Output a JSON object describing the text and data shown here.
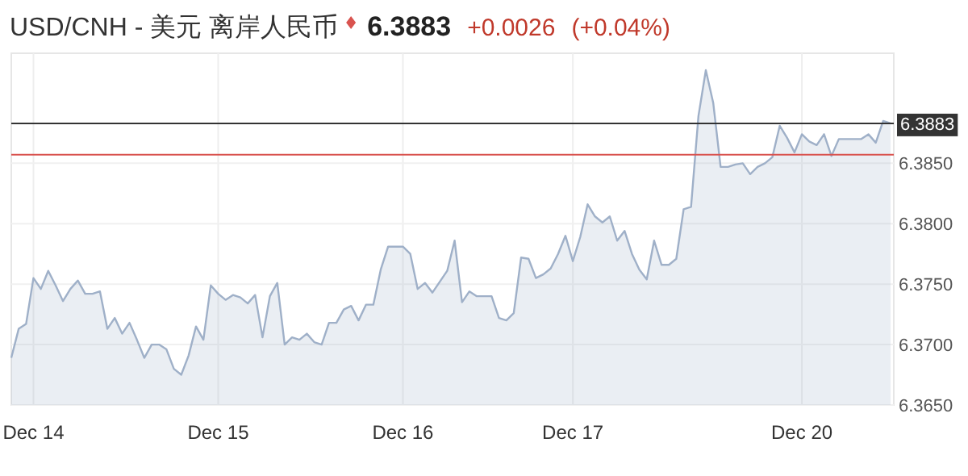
{
  "chart_data": {
    "type": "area",
    "title": "USD/CNH - 美元 离岸人民币",
    "annotations": [
      "6.3883",
      "+0.0026",
      "(+0.04%)"
    ],
    "categories": [
      null,
      null,
      null,
      "Dec 14",
      null,
      null,
      null,
      null,
      null,
      null,
      null,
      null,
      null,
      null,
      null,
      null,
      null,
      null,
      null,
      null,
      null,
      null,
      null,
      null,
      null,
      null,
      null,
      null,
      "Dec 15",
      null,
      null,
      null,
      null,
      null,
      null,
      null,
      null,
      null,
      null,
      null,
      null,
      null,
      null,
      null,
      null,
      null,
      null,
      null,
      null,
      null,
      null,
      null,
      null,
      "Dec 16",
      null,
      null,
      null,
      null,
      null,
      null,
      null,
      null,
      null,
      null,
      null,
      null,
      null,
      null,
      null,
      null,
      null,
      null,
      null,
      null,
      null,
      null,
      "Dec 17",
      null,
      null,
      null,
      null,
      null,
      null,
      null,
      null,
      null,
      null,
      null,
      null,
      null,
      null,
      null,
      null,
      null,
      null,
      null,
      null,
      null,
      null,
      null,
      null,
      null,
      null,
      null,
      null,
      null,
      null,
      "Dec 20",
      null,
      null,
      null,
      null,
      null,
      null,
      null,
      null,
      null,
      null,
      null,
      null
    ],
    "ylim": [
      6.365,
      6.3941
    ],
    "yticks": [
      {
        "value": 6.365,
        "label": "6.3650"
      },
      {
        "value": 6.37,
        "label": "6.3700"
      },
      {
        "value": 6.375,
        "label": "6.3750"
      },
      {
        "value": 6.38,
        "label": "6.3800"
      },
      {
        "value": 6.385,
        "label": "6.3850"
      }
    ],
    "grid": true,
    "ref_lines": [
      {
        "axis": "y",
        "value": 6.3883,
        "label": "6.3883",
        "color": "#333333"
      },
      {
        "axis": "y",
        "value": 6.3857,
        "color": "#d9534f"
      }
    ],
    "series": [
      {
        "color": "#9fb0c8",
        "values": [
          6.3689,
          6.3713,
          6.3717,
          6.3755,
          6.3746,
          6.3761,
          6.3749,
          6.3736,
          6.3746,
          6.3753,
          6.3742,
          6.3742,
          6.3744,
          6.3713,
          6.3722,
          6.3709,
          6.3718,
          6.3704,
          6.3689,
          6.37,
          6.37,
          6.3696,
          6.368,
          6.3675,
          6.3691,
          6.3715,
          6.3704,
          6.3749,
          6.3742,
          6.3737,
          6.3741,
          6.3739,
          6.3734,
          6.3741,
          6.3706,
          6.374,
          6.3751,
          6.37,
          6.3706,
          6.3704,
          6.3709,
          6.3702,
          6.37,
          6.3718,
          6.3718,
          6.3729,
          6.3732,
          6.372,
          6.3733,
          6.3733,
          6.3762,
          6.3781,
          6.3781,
          6.3781,
          6.3775,
          6.3746,
          6.3751,
          6.3743,
          6.3752,
          6.3761,
          6.3786,
          6.3735,
          6.3744,
          6.374,
          6.374,
          6.374,
          6.3722,
          6.372,
          6.3726,
          6.3772,
          6.3771,
          6.3755,
          6.3758,
          6.3763,
          6.3775,
          6.379,
          6.3769,
          6.3789,
          6.3816,
          6.3806,
          6.3801,
          6.3806,
          6.3786,
          6.3794,
          6.3775,
          6.3762,
          6.3754,
          6.3786,
          6.3766,
          6.3766,
          6.3771,
          6.3812,
          6.3814,
          6.3889,
          6.3927,
          6.39,
          6.3847,
          6.3847,
          6.3849,
          6.385,
          6.3841,
          6.3847,
          6.385,
          6.3855,
          6.3881,
          6.3871,
          6.3859,
          6.3874,
          6.3868,
          6.3865,
          6.3874,
          6.3856,
          6.387,
          6.387,
          6.387,
          6.387,
          6.3874,
          6.3867,
          6.3885,
          6.3883
        ]
      }
    ]
  }
}
